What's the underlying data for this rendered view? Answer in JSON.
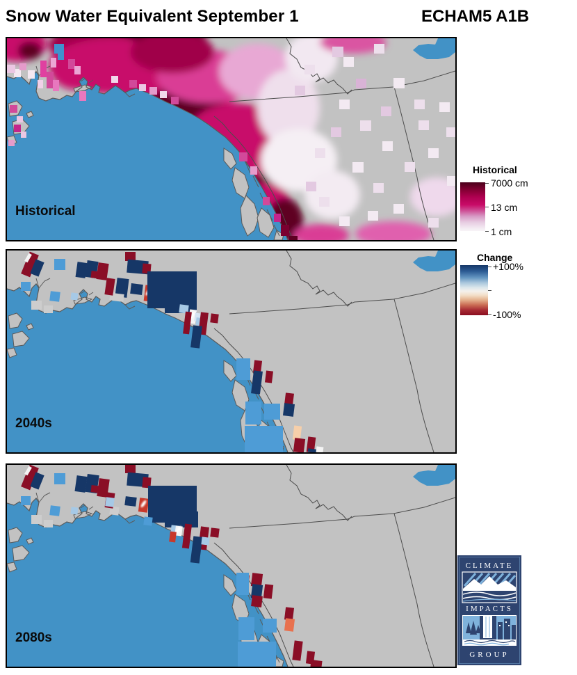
{
  "header": {
    "title": "Snow Water Equivalent September 1",
    "model": "ECHAM5 A1B"
  },
  "panels": [
    {
      "label": "Historical",
      "type": "historical"
    },
    {
      "label": "2040s",
      "type": "change"
    },
    {
      "label": "2080s",
      "type": "change"
    }
  ],
  "legend_historical": {
    "title": "Historical",
    "tick_top": "7000 cm",
    "tick_mid": "13 cm",
    "tick_bottom": "1 cm"
  },
  "legend_change": {
    "title": "Change",
    "tick_top": "+100%",
    "tick_bottom": "-100%"
  },
  "logo": {
    "line1": "CLIMATE",
    "line2": "IMPACTS",
    "line3": "GROUP",
    "navy": "#2E4470",
    "lightblue": "#7FB2DC"
  },
  "colors": {
    "ocean": "#4292C6",
    "land": "#C2C2C2",
    "coast": "#5A5A5A",
    "border": "#4D4D4D",
    "cell": {
      "N": "#163767",
      "B": "#4E9CD6",
      "P": "#A6C9E6",
      "V": "#D6E4F2",
      "R": "#8A0E26",
      "O": "#C8392B",
      "S": "#E8714E",
      "E": "#F6CFAA",
      "W": "#F4F4F4",
      "G": "#CDCDCD"
    }
  },
  "historical_blobs": [
    [
      15,
      8,
      42,
      26,
      "#C8076B"
    ],
    [
      33,
      18,
      17,
      13,
      "#5E0023"
    ],
    [
      115,
      20,
      32,
      22,
      "#5E0023"
    ],
    [
      100,
      42,
      38,
      32,
      "#C8076B"
    ],
    [
      185,
      12,
      105,
      48,
      "#5E0023"
    ],
    [
      120,
      10,
      60,
      28,
      "#A00048"
    ],
    [
      150,
      40,
      90,
      40,
      "#C8076B"
    ],
    [
      245,
      75,
      85,
      45,
      "#C8076B"
    ],
    [
      258,
      98,
      55,
      32,
      "#5E0023"
    ],
    [
      300,
      132,
      55,
      38,
      "#5E0023"
    ],
    [
      348,
      198,
      42,
      48,
      "#5E0023"
    ],
    [
      330,
      148,
      75,
      55,
      "#C8076B"
    ],
    [
      368,
      248,
      45,
      40,
      "#C8076B"
    ],
    [
      400,
      262,
      26,
      32,
      "#5E0023"
    ],
    [
      290,
      55,
      75,
      38,
      "#DA3E95"
    ],
    [
      360,
      48,
      55,
      40,
      "#E8A8D4"
    ],
    [
      405,
      100,
      45,
      55,
      "#EFDFEC"
    ],
    [
      438,
      28,
      38,
      35,
      "#F2E8F1"
    ],
    [
      498,
      6,
      48,
      16,
      "#DA55A2"
    ],
    [
      452,
      283,
      40,
      16,
      "#DA3E95"
    ],
    [
      556,
      281,
      55,
      18,
      "#E060AE"
    ],
    [
      618,
      228,
      38,
      28,
      "#EFD9EC"
    ],
    [
      420,
      175,
      55,
      45,
      "#F5EFF4"
    ],
    [
      468,
      225,
      40,
      35,
      "#F3EBF2"
    ],
    [
      238,
      20,
      60,
      30,
      "#A00048"
    ]
  ],
  "historical_cells": [
    [
      468,
      12,
      16,
      15,
      "#E3C9E1"
    ],
    [
      484,
      27,
      15,
      14,
      "#F3EAF2"
    ],
    [
      528,
      8,
      15,
      14,
      "#EDDFEC"
    ],
    [
      556,
      57,
      16,
      15,
      "#F3EAF2"
    ],
    [
      586,
      88,
      15,
      14,
      "#EDDFEC"
    ],
    [
      478,
      88,
      15,
      14,
      "#F3EAF2"
    ],
    [
      508,
      118,
      16,
      15,
      "#EDDFEC"
    ],
    [
      540,
      148,
      15,
      14,
      "#F3EAF2"
    ],
    [
      572,
      178,
      15,
      14,
      "#EDDFEC"
    ],
    [
      606,
      158,
      15,
      14,
      "#F3EAF2"
    ],
    [
      592,
      118,
      15,
      14,
      "#EDDFEC"
    ],
    [
      622,
      92,
      15,
      14,
      "#F3EAF2"
    ],
    [
      466,
      128,
      15,
      14,
      "#E3C9E1"
    ],
    [
      443,
      158,
      15,
      14,
      "#EDDFEC"
    ],
    [
      497,
      178,
      16,
      15,
      "#F3EAF2"
    ],
    [
      527,
      208,
      15,
      14,
      "#EDDFEC"
    ],
    [
      556,
      238,
      15,
      14,
      "#F3EAF2"
    ],
    [
      606,
      258,
      15,
      14,
      "#EDDFEC"
    ],
    [
      633,
      198,
      12,
      14,
      "#F3EAF2"
    ],
    [
      449,
      228,
      15,
      14,
      "#EDDFEC"
    ],
    [
      478,
      256,
      15,
      14,
      "#F3EAF2"
    ],
    [
      430,
      206,
      15,
      14,
      "#E3C9E1"
    ],
    [
      632,
      128,
      13,
      14,
      "#EDDFEC"
    ],
    [
      519,
      248,
      15,
      14,
      "#F3EAF2"
    ],
    [
      428,
      38,
      15,
      14,
      "#EDDFEC"
    ],
    [
      414,
      68,
      15,
      14,
      "#E3C9E1"
    ],
    [
      502,
      58,
      15,
      14,
      "#D9B3D6"
    ],
    [
      538,
      98,
      15,
      14,
      "#E3C9E1"
    ],
    [
      48,
      32,
      9,
      24,
      "#E040A0"
    ],
    [
      57,
      48,
      10,
      24,
      "#D2499A"
    ],
    [
      63,
      28,
      8,
      14,
      "#EBA5D4"
    ],
    [
      66,
      60,
      9,
      16,
      "#E878BE"
    ],
    [
      44,
      60,
      8,
      12,
      "#F0D0E8"
    ],
    [
      30,
      46,
      10,
      12,
      "#F4E8F1"
    ],
    [
      10,
      44,
      10,
      12,
      "#F4E8F1"
    ],
    [
      0,
      38,
      12,
      12,
      "#EBC7E3"
    ],
    [
      18,
      36,
      10,
      10,
      "#E59BCB"
    ],
    [
      88,
      30,
      10,
      14,
      "#D2499A"
    ],
    [
      97,
      40,
      9,
      12,
      "#EBA5D4"
    ],
    [
      104,
      76,
      10,
      14,
      "#E878BE"
    ],
    [
      68,
      8,
      14,
      14,
      "#3F93CE"
    ],
    [
      73,
      20,
      9,
      11,
      "#3F93CE"
    ],
    [
      4,
      96,
      11,
      11,
      "#D2499A"
    ],
    [
      14,
      112,
      9,
      9,
      "#EBC7E3"
    ],
    [
      10,
      124,
      10,
      11,
      "#C4258B"
    ],
    [
      20,
      134,
      8,
      9,
      "#EBC7E3"
    ],
    [
      2,
      146,
      9,
      9,
      "#E59BCB"
    ],
    [
      334,
      164,
      12,
      13,
      "#D2499A"
    ],
    [
      350,
      184,
      10,
      12,
      "#E59BCB"
    ],
    [
      368,
      228,
      10,
      12,
      "#D2499A"
    ],
    [
      384,
      252,
      10,
      12,
      "#C4258B"
    ],
    [
      394,
      268,
      12,
      16,
      "#7A0030"
    ],
    [
      406,
      284,
      12,
      6,
      "#5E0023"
    ],
    [
      150,
      54,
      10,
      10,
      "#F0D8EA"
    ],
    [
      176,
      60,
      11,
      11,
      "#D2499A"
    ],
    [
      190,
      66,
      10,
      10,
      "#EBC7E3"
    ],
    [
      205,
      70,
      11,
      11,
      "#E59BCB"
    ],
    [
      220,
      76,
      10,
      10,
      "#F0D8EA"
    ],
    [
      236,
      84,
      11,
      11,
      "#D2499A"
    ]
  ],
  "change_cells": {
    "2040s": [
      [
        26,
        3,
        14,
        34,
        "R",
        22
      ],
      [
        37,
        14,
        13,
        22,
        "N",
        22
      ],
      [
        28,
        4,
        5,
        13,
        "W",
        30
      ],
      [
        68,
        12,
        16,
        16,
        "B",
        0
      ],
      [
        20,
        45,
        14,
        13,
        "B",
        0
      ],
      [
        62,
        59,
        14,
        14,
        "B",
        7
      ],
      [
        92,
        61,
        10,
        10,
        "P",
        7
      ],
      [
        35,
        72,
        15,
        13,
        "G",
        0
      ],
      [
        53,
        79,
        13,
        11,
        "G",
        0
      ],
      [
        148,
        60,
        13,
        12,
        "G",
        7
      ],
      [
        100,
        17,
        14,
        22,
        "N",
        8
      ],
      [
        114,
        15,
        16,
        24,
        "N",
        8
      ],
      [
        130,
        18,
        15,
        24,
        "R",
        8
      ],
      [
        121,
        30,
        16,
        10,
        "R",
        7
      ],
      [
        142,
        40,
        12,
        24,
        "R",
        8
      ],
      [
        170,
        2,
        15,
        13,
        "R",
        0
      ],
      [
        173,
        14,
        30,
        19,
        "N",
        5
      ],
      [
        195,
        19,
        12,
        14,
        "R",
        5
      ],
      [
        157,
        40,
        17,
        27,
        "N",
        7
      ],
      [
        152,
        62,
        16,
        11,
        "G",
        7
      ],
      [
        178,
        48,
        17,
        15,
        "N",
        7
      ],
      [
        198,
        50,
        11,
        23,
        "O",
        7,
        1
      ],
      [
        202,
        30,
        71,
        53,
        "N",
        0
      ],
      [
        227,
        67,
        46,
        23,
        "N",
        0
      ],
      [
        248,
        78,
        13,
        12,
        "P",
        7
      ],
      [
        262,
        85,
        10,
        20,
        "W",
        7,
        1
      ],
      [
        270,
        90,
        9,
        12,
        "V",
        7
      ],
      [
        272,
        97,
        16,
        11,
        "P",
        7
      ],
      [
        255,
        88,
        9,
        32,
        "R",
        7
      ],
      [
        277,
        89,
        11,
        32,
        "R",
        7
      ],
      [
        293,
        91,
        11,
        13,
        "R",
        7
      ],
      [
        266,
        108,
        13,
        32,
        "N",
        7
      ],
      [
        355,
        158,
        11,
        18,
        "R",
        7
      ],
      [
        353,
        173,
        13,
        33,
        "N",
        7
      ],
      [
        372,
        173,
        10,
        17,
        "R",
        7
      ],
      [
        400,
        205,
        12,
        17,
        "R",
        7
      ],
      [
        398,
        220,
        15,
        18,
        "N",
        7
      ],
      [
        412,
        252,
        11,
        20,
        "E",
        7
      ],
      [
        413,
        270,
        15,
        20,
        "R",
        7
      ],
      [
        432,
        268,
        11,
        22,
        "R",
        7
      ],
      [
        433,
        285,
        12,
        5,
        "N",
        7
      ],
      [
        445,
        282,
        10,
        8,
        "W",
        7
      ],
      [
        330,
        155,
        20,
        31,
        "B",
        0
      ],
      [
        343,
        217,
        23,
        33,
        "B",
        0
      ],
      [
        370,
        220,
        23,
        23,
        "B",
        0
      ],
      [
        342,
        252,
        55,
        38,
        "B",
        0
      ]
    ],
    "2080s": [
      [
        26,
        1,
        14,
        34,
        "R",
        22
      ],
      [
        37,
        12,
        13,
        22,
        "N",
        22
      ],
      [
        28,
        2,
        5,
        13,
        "W",
        30
      ],
      [
        68,
        12,
        16,
        16,
        "B",
        0
      ],
      [
        20,
        45,
        14,
        13,
        "B",
        0
      ],
      [
        62,
        59,
        14,
        14,
        "B",
        7
      ],
      [
        92,
        61,
        10,
        10,
        "P",
        7
      ],
      [
        35,
        72,
        15,
        13,
        "G",
        0
      ],
      [
        53,
        79,
        13,
        11,
        "G",
        0
      ],
      [
        148,
        60,
        13,
        12,
        "G",
        7
      ],
      [
        99,
        16,
        15,
        23,
        "N",
        8
      ],
      [
        114,
        14,
        17,
        26,
        "N",
        8
      ],
      [
        131,
        20,
        15,
        26,
        "R",
        8
      ],
      [
        121,
        30,
        16,
        10,
        "R",
        7
      ],
      [
        142,
        40,
        12,
        22,
        "R",
        8
      ],
      [
        142,
        47,
        12,
        13,
        "P",
        8
      ],
      [
        170,
        0,
        15,
        12,
        "R",
        0
      ],
      [
        173,
        12,
        30,
        19,
        "N",
        5
      ],
      [
        195,
        18,
        12,
        15,
        "R",
        5
      ],
      [
        170,
        46,
        16,
        13,
        "N",
        7
      ],
      [
        190,
        48,
        13,
        20,
        "O",
        7,
        1
      ],
      [
        203,
        30,
        70,
        53,
        "N",
        0
      ],
      [
        227,
        67,
        48,
        23,
        "N",
        0
      ],
      [
        197,
        75,
        12,
        12,
        "B",
        7
      ],
      [
        236,
        87,
        11,
        11,
        "P",
        7
      ],
      [
        242,
        88,
        10,
        14,
        "W",
        7,
        1
      ],
      [
        234,
        96,
        9,
        15,
        "O",
        7
      ],
      [
        254,
        85,
        10,
        35,
        "R",
        7
      ],
      [
        277,
        89,
        12,
        33,
        "R",
        7
      ],
      [
        293,
        91,
        12,
        13,
        "R",
        7
      ],
      [
        266,
        103,
        13,
        38,
        "N",
        7
      ],
      [
        280,
        104,
        11,
        11,
        "P",
        7
      ],
      [
        335,
        158,
        13,
        17,
        "R",
        7
      ],
      [
        352,
        156,
        15,
        19,
        "R",
        7
      ],
      [
        352,
        172,
        15,
        20,
        "N",
        7
      ],
      [
        352,
        188,
        15,
        16,
        "R",
        7
      ],
      [
        370,
        172,
        12,
        20,
        "R",
        7
      ],
      [
        400,
        205,
        12,
        18,
        "R",
        7
      ],
      [
        400,
        221,
        13,
        18,
        "S",
        7
      ],
      [
        412,
        253,
        12,
        28,
        "R",
        7
      ],
      [
        431,
        268,
        11,
        18,
        "R",
        7
      ],
      [
        437,
        281,
        16,
        10,
        "R",
        7
      ],
      [
        330,
        155,
        18,
        32,
        "B",
        0
      ],
      [
        333,
        219,
        23,
        33,
        "B",
        0
      ],
      [
        332,
        254,
        55,
        38,
        "B",
        0
      ],
      [
        368,
        221,
        20,
        20,
        "B",
        0
      ]
    ]
  }
}
